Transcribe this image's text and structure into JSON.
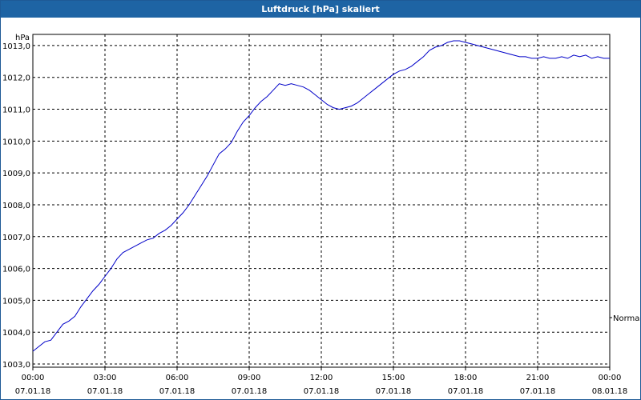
{
  "window": {
    "title": "Luftdruck [hPa] skaliert"
  },
  "colors": {
    "titlebar": "#1e64a4",
    "series": "#0000c8",
    "grid": "#000000"
  },
  "chart_data": {
    "type": "line",
    "title": "Luftdruck [hPa] skaliert",
    "ylabel": "hPa",
    "xlabel": "",
    "ylim": [
      1002.9,
      1013.35
    ],
    "xlim_hours": [
      0,
      24
    ],
    "grid": true,
    "legend_position": "right",
    "y_ticks": [
      "1003,0",
      "1004,0",
      "1005,0",
      "1006,0",
      "1007,0",
      "1008,0",
      "1009,0",
      "1010,0",
      "1011,0",
      "1012,0",
      "1013,0"
    ],
    "x_ticks": [
      {
        "time": "00:00",
        "date": "07.01.18"
      },
      {
        "time": "03:00",
        "date": "07.01.18"
      },
      {
        "time": "06:00",
        "date": "07.01.18"
      },
      {
        "time": "09:00",
        "date": "07.01.18"
      },
      {
        "time": "12:00",
        "date": "07.01.18"
      },
      {
        "time": "15:00",
        "date": "07.01.18"
      },
      {
        "time": "18:00",
        "date": "07.01.18"
      },
      {
        "time": "21:00",
        "date": "07.01.18"
      },
      {
        "time": "00:00",
        "date": "08.01.18"
      }
    ],
    "series": [
      {
        "name": "Normal",
        "x_hours": [
          0.0,
          0.25,
          0.5,
          0.75,
          1.0,
          1.25,
          1.5,
          1.75,
          2.0,
          2.25,
          2.5,
          2.75,
          3.0,
          3.25,
          3.5,
          3.75,
          4.0,
          4.25,
          4.5,
          4.75,
          5.0,
          5.25,
          5.5,
          5.75,
          6.0,
          6.25,
          6.5,
          6.75,
          7.0,
          7.25,
          7.5,
          7.75,
          8.0,
          8.25,
          8.5,
          8.75,
          9.0,
          9.25,
          9.5,
          9.75,
          10.0,
          10.25,
          10.5,
          10.75,
          11.0,
          11.25,
          11.5,
          11.75,
          12.0,
          12.25,
          12.5,
          12.75,
          13.0,
          13.25,
          13.5,
          13.75,
          14.0,
          14.25,
          14.5,
          14.75,
          15.0,
          15.25,
          15.5,
          15.75,
          16.0,
          16.25,
          16.5,
          16.75,
          17.0,
          17.25,
          17.5,
          17.75,
          18.0,
          18.25,
          18.5,
          18.75,
          19.0,
          19.25,
          19.5,
          19.75,
          20.0,
          20.25,
          20.5,
          20.75,
          21.0,
          21.25,
          21.5,
          21.75,
          22.0,
          22.25,
          22.5,
          22.75,
          23.0,
          23.25,
          23.5,
          23.75,
          24.0
        ],
        "values": [
          1003.4,
          1003.55,
          1003.7,
          1003.75,
          1004.0,
          1004.25,
          1004.35,
          1004.5,
          1004.8,
          1005.05,
          1005.3,
          1005.5,
          1005.75,
          1006.0,
          1006.3,
          1006.5,
          1006.6,
          1006.7,
          1006.8,
          1006.9,
          1006.95,
          1007.1,
          1007.2,
          1007.35,
          1007.55,
          1007.75,
          1008.0,
          1008.3,
          1008.6,
          1008.9,
          1009.25,
          1009.6,
          1009.75,
          1009.95,
          1010.3,
          1010.6,
          1010.8,
          1011.05,
          1011.25,
          1011.4,
          1011.6,
          1011.8,
          1011.75,
          1011.8,
          1011.75,
          1011.7,
          1011.6,
          1011.45,
          1011.3,
          1011.15,
          1011.05,
          1011.0,
          1011.05,
          1011.1,
          1011.2,
          1011.35,
          1011.5,
          1011.65,
          1011.8,
          1011.95,
          1012.1,
          1012.2,
          1012.25,
          1012.35,
          1012.5,
          1012.65,
          1012.85,
          1012.95,
          1013.0,
          1013.1,
          1013.15,
          1013.15,
          1013.1,
          1013.05,
          1013.0,
          1012.95,
          1012.9,
          1012.85,
          1012.8,
          1012.75,
          1012.7,
          1012.65,
          1012.65,
          1012.6,
          1012.6,
          1012.65,
          1012.6,
          1012.6,
          1012.65,
          1012.6,
          1012.7,
          1012.65,
          1012.7,
          1012.6,
          1012.65,
          1012.6,
          1012.6
        ]
      }
    ]
  }
}
